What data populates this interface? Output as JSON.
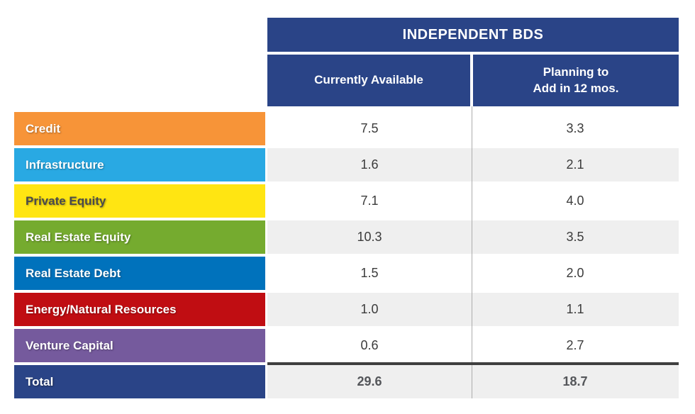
{
  "table": {
    "title": "INDEPENDENT BDS",
    "header_bg": "#2A4487",
    "header_text_color": "#FFFFFF",
    "columns": {
      "currently": {
        "label": "Currently Available"
      },
      "planning": {
        "line1": "Planning to",
        "line2": "Add in 12 mos."
      }
    },
    "rows": [
      {
        "label": "Credit",
        "color": "#F79438",
        "text_color": "#FFFFFF",
        "currently": "7.5",
        "planning": "3.3"
      },
      {
        "label": "Infrastructure",
        "color": "#29A9E3",
        "text_color": "#FFFFFF",
        "currently": "1.6",
        "planning": "2.1"
      },
      {
        "label": "Private Equity",
        "color": "#FFE512",
        "text_color": "#4A4A4C",
        "currently": "7.1",
        "planning": "4.0"
      },
      {
        "label": "Real Estate Equity",
        "color": "#75AB2F",
        "text_color": "#FFFFFF",
        "currently": "10.3",
        "planning": "3.5"
      },
      {
        "label": "Real Estate Debt",
        "color": "#0072BC",
        "text_color": "#FFFFFF",
        "currently": "1.5",
        "planning": "2.0"
      },
      {
        "label": "Energy/Natural Resources",
        "color": "#C00D12",
        "text_color": "#FFFFFF",
        "currently": "1.0",
        "planning": "1.1"
      },
      {
        "label": "Venture Capital",
        "color": "#755A9D",
        "text_color": "#FFFFFF",
        "currently": "0.6",
        "planning": "2.7"
      }
    ],
    "total": {
      "label": "Total",
      "color": "#2A4487",
      "text_color": "#FFFFFF",
      "currently": "29.6",
      "planning": "18.7"
    }
  },
  "chart_data": {
    "type": "table",
    "title": "INDEPENDENT BDS",
    "columns": [
      "Currently Available",
      "Planning to Add in 12 mos."
    ],
    "categories": [
      "Credit",
      "Infrastructure",
      "Private Equity",
      "Real Estate Equity",
      "Real Estate Debt",
      "Energy/Natural Resources",
      "Venture Capital",
      "Total"
    ],
    "series": [
      {
        "name": "Currently Available",
        "values": [
          7.5,
          1.6,
          7.1,
          10.3,
          1.5,
          1.0,
          0.6,
          29.6
        ]
      },
      {
        "name": "Planning to Add in 12 mos.",
        "values": [
          3.3,
          2.1,
          4.0,
          3.5,
          2.0,
          1.1,
          2.7,
          18.7
        ]
      }
    ]
  }
}
